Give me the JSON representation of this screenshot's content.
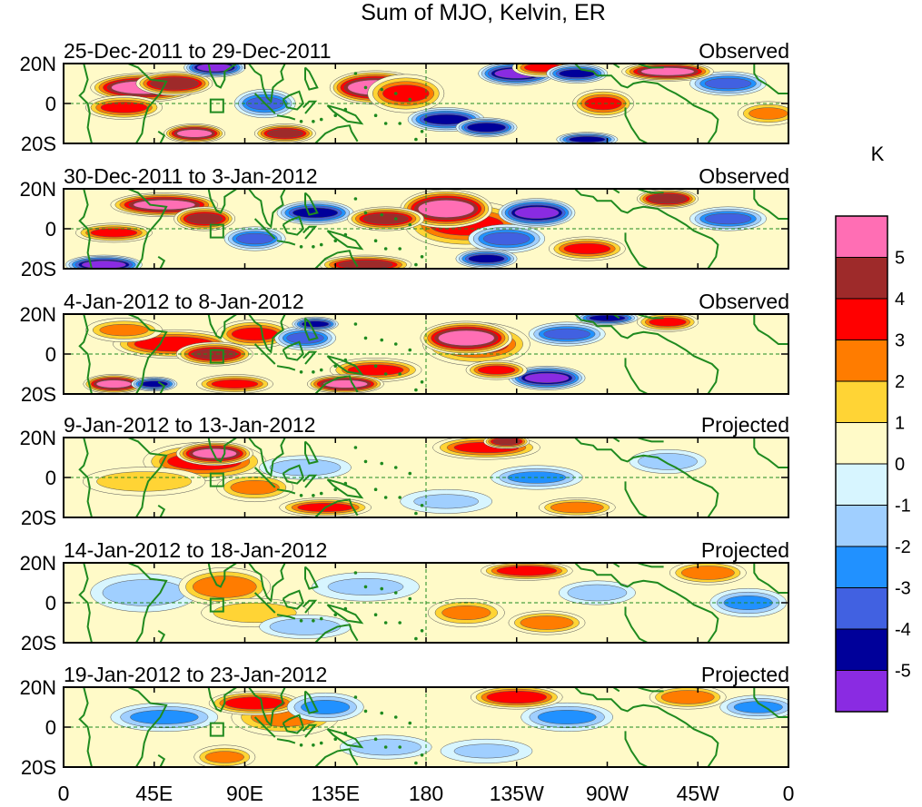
{
  "chart_data": {
    "type": "heatmap",
    "title": "Sum of MJO, Kelvin, ER",
    "units_label": "K",
    "x_ticks": [
      "0",
      "45E",
      "90E",
      "135E",
      "180",
      "135W",
      "90W",
      "45W",
      "0"
    ],
    "y_ticks": [
      "20N",
      "0",
      "20S"
    ],
    "legend": {
      "labels": [
        "5",
        "4",
        "3",
        "2",
        "1",
        "0",
        "-1",
        "-2",
        "-3",
        "-4",
        "-5"
      ],
      "colors": [
        "#ff6eb4",
        "#9e2a2a",
        "#ff0000",
        "#ff7c00",
        "#ffd435",
        "#fffac8",
        "#d7f5ff",
        "#a0cfff",
        "#2191ff",
        "#4161e1",
        "#00009a",
        "#8a2be2"
      ]
    },
    "panels": [
      {
        "date_range": "25-Dec-2011 to 29-Dec-2011",
        "status": "Observed",
        "anomalies": [
          {
            "lon": 40,
            "lat": 8,
            "value": 5.5,
            "rx": 14,
            "ry": 6
          },
          {
            "lon": 55,
            "lat": 10,
            "value": 4.5,
            "rx": 10,
            "ry": 5
          },
          {
            "lon": 30,
            "lat": -2,
            "value": 3,
            "rx": 10,
            "ry": 5
          },
          {
            "lon": 75,
            "lat": 18,
            "value": -5,
            "rx": 8,
            "ry": 4
          },
          {
            "lon": 65,
            "lat": -15,
            "value": 5,
            "rx": 8,
            "ry": 4
          },
          {
            "lon": 100,
            "lat": 0,
            "value": -3,
            "rx": 8,
            "ry": 6
          },
          {
            "lon": 110,
            "lat": -15,
            "value": 4,
            "rx": 8,
            "ry": 4
          },
          {
            "lon": 155,
            "lat": 8,
            "value": 5.5,
            "rx": 12,
            "ry": 7
          },
          {
            "lon": 170,
            "lat": 5,
            "value": 3,
            "rx": 10,
            "ry": 8
          },
          {
            "lon": 190,
            "lat": -8,
            "value": -4,
            "rx": 10,
            "ry": 5
          },
          {
            "lon": 210,
            "lat": -12,
            "value": -4.5,
            "rx": 8,
            "ry": 4
          },
          {
            "lon": 225,
            "lat": 15,
            "value": -5,
            "rx": 10,
            "ry": 5
          },
          {
            "lon": 238,
            "lat": 18,
            "value": 3,
            "rx": 8,
            "ry": 4
          },
          {
            "lon": 255,
            "lat": 15,
            "value": -4,
            "rx": 8,
            "ry": 4
          },
          {
            "lon": 268,
            "lat": 0,
            "value": 3,
            "rx": 8,
            "ry": 6
          },
          {
            "lon": 300,
            "lat": 16,
            "value": 5,
            "rx": 12,
            "ry": 4
          },
          {
            "lon": 330,
            "lat": 10,
            "value": -3,
            "rx": 10,
            "ry": 5
          },
          {
            "lon": 350,
            "lat": -5,
            "value": 2,
            "rx": 8,
            "ry": 5
          },
          {
            "lon": 260,
            "lat": -18,
            "value": -4,
            "rx": 8,
            "ry": 3
          }
        ]
      },
      {
        "date_range": "30-Dec-2011 to 3-Jan-2012",
        "status": "Observed",
        "anomalies": [
          {
            "lon": 50,
            "lat": 12,
            "value": 5,
            "rx": 14,
            "ry": 5
          },
          {
            "lon": 70,
            "lat": 5,
            "value": 4,
            "rx": 8,
            "ry": 5
          },
          {
            "lon": 25,
            "lat": -2,
            "value": 3,
            "rx": 10,
            "ry": 4
          },
          {
            "lon": 20,
            "lat": -18,
            "value": -5,
            "rx": 10,
            "ry": 4
          },
          {
            "lon": 95,
            "lat": -5,
            "value": -3,
            "rx": 8,
            "ry": 5
          },
          {
            "lon": 125,
            "lat": 8,
            "value": -4,
            "rx": 10,
            "ry": 5
          },
          {
            "lon": 150,
            "lat": -18,
            "value": 4,
            "rx": 12,
            "ry": 4
          },
          {
            "lon": 160,
            "lat": 5,
            "value": 4,
            "rx": 10,
            "ry": 5
          },
          {
            "lon": 190,
            "lat": 10,
            "value": 5.5,
            "rx": 12,
            "ry": 8
          },
          {
            "lon": 200,
            "lat": 2,
            "value": 3,
            "rx": 16,
            "ry": 10
          },
          {
            "lon": 220,
            "lat": -5,
            "value": -3,
            "rx": 10,
            "ry": 6
          },
          {
            "lon": 235,
            "lat": 8,
            "value": -5,
            "rx": 10,
            "ry": 6
          },
          {
            "lon": 210,
            "lat": -15,
            "value": -4,
            "rx": 8,
            "ry": 4
          },
          {
            "lon": 260,
            "lat": -10,
            "value": 3,
            "rx": 10,
            "ry": 5
          },
          {
            "lon": 300,
            "lat": 15,
            "value": 4.5,
            "rx": 8,
            "ry": 4
          },
          {
            "lon": 330,
            "lat": 5,
            "value": -3,
            "rx": 10,
            "ry": 5
          }
        ]
      },
      {
        "date_range": "4-Jan-2012 to 8-Jan-2012",
        "status": "Observed",
        "anomalies": [
          {
            "lon": 55,
            "lat": 5,
            "value": 3.5,
            "rx": 16,
            "ry": 6
          },
          {
            "lon": 75,
            "lat": 0,
            "value": 4,
            "rx": 10,
            "ry": 5
          },
          {
            "lon": 95,
            "lat": 10,
            "value": 3,
            "rx": 10,
            "ry": 6
          },
          {
            "lon": 30,
            "lat": 12,
            "value": 2,
            "rx": 10,
            "ry": 5
          },
          {
            "lon": 25,
            "lat": -15,
            "value": 5,
            "rx": 8,
            "ry": 4
          },
          {
            "lon": 45,
            "lat": -15,
            "value": -4,
            "rx": 6,
            "ry": 3
          },
          {
            "lon": 85,
            "lat": -15,
            "value": 3,
            "rx": 10,
            "ry": 4
          },
          {
            "lon": 120,
            "lat": 8,
            "value": -3,
            "rx": 8,
            "ry": 5
          },
          {
            "lon": 125,
            "lat": 15,
            "value": -4,
            "rx": 6,
            "ry": 3
          },
          {
            "lon": 140,
            "lat": -15,
            "value": 5,
            "rx": 10,
            "ry": 4
          },
          {
            "lon": 155,
            "lat": -8,
            "value": 3,
            "rx": 12,
            "ry": 5
          },
          {
            "lon": 200,
            "lat": 8,
            "value": 5.5,
            "rx": 12,
            "ry": 7
          },
          {
            "lon": 205,
            "lat": 5,
            "value": 3,
            "rx": 14,
            "ry": 9
          },
          {
            "lon": 215,
            "lat": -8,
            "value": 3,
            "rx": 8,
            "ry": 4
          },
          {
            "lon": 240,
            "lat": -12,
            "value": -5,
            "rx": 10,
            "ry": 5
          },
          {
            "lon": 250,
            "lat": 10,
            "value": -3,
            "rx": 10,
            "ry": 5
          },
          {
            "lon": 300,
            "lat": 16,
            "value": 3,
            "rx": 8,
            "ry": 4
          },
          {
            "lon": 270,
            "lat": 18,
            "value": -4,
            "rx": 8,
            "ry": 3
          }
        ]
      },
      {
        "date_range": "9-Jan-2012 to 13-Jan-2012",
        "status": "Projected",
        "anomalies": [
          {
            "lon": 75,
            "lat": 12,
            "value": 5,
            "rx": 10,
            "ry": 5
          },
          {
            "lon": 70,
            "lat": 8,
            "value": 3,
            "rx": 16,
            "ry": 8
          },
          {
            "lon": 40,
            "lat": -2,
            "value": 1.5,
            "rx": 16,
            "ry": 6
          },
          {
            "lon": 95,
            "lat": -5,
            "value": 2,
            "rx": 10,
            "ry": 6
          },
          {
            "lon": 130,
            "lat": -15,
            "value": 3,
            "rx": 12,
            "ry": 4
          },
          {
            "lon": 120,
            "lat": 5,
            "value": -1.5,
            "rx": 12,
            "ry": 5
          },
          {
            "lon": 210,
            "lat": 15,
            "value": 3,
            "rx": 14,
            "ry": 5
          },
          {
            "lon": 220,
            "lat": 18,
            "value": 4,
            "rx": 6,
            "ry": 3
          },
          {
            "lon": 235,
            "lat": 0,
            "value": -2,
            "rx": 12,
            "ry": 5
          },
          {
            "lon": 255,
            "lat": -15,
            "value": 2.5,
            "rx": 10,
            "ry": 4
          },
          {
            "lon": 300,
            "lat": 8,
            "value": -1.5,
            "rx": 10,
            "ry": 5
          },
          {
            "lon": 190,
            "lat": -12,
            "value": -1,
            "rx": 12,
            "ry": 5
          }
        ]
      },
      {
        "date_range": "14-Jan-2012 to 18-Jan-2012",
        "status": "Projected",
        "anomalies": [
          {
            "lon": 80,
            "lat": 8,
            "value": 2.5,
            "rx": 12,
            "ry": 8
          },
          {
            "lon": 95,
            "lat": -5,
            "value": 1.5,
            "rx": 14,
            "ry": 6
          },
          {
            "lon": 40,
            "lat": 5,
            "value": -1.5,
            "rx": 14,
            "ry": 8
          },
          {
            "lon": 120,
            "lat": -12,
            "value": -1.5,
            "rx": 12,
            "ry": 5
          },
          {
            "lon": 150,
            "lat": 8,
            "value": -1,
            "rx": 14,
            "ry": 6
          },
          {
            "lon": 230,
            "lat": 16,
            "value": 3.5,
            "rx": 12,
            "ry": 4
          },
          {
            "lon": 200,
            "lat": -5,
            "value": 2,
            "rx": 10,
            "ry": 6
          },
          {
            "lon": 240,
            "lat": -10,
            "value": 2.5,
            "rx": 10,
            "ry": 5
          },
          {
            "lon": 265,
            "lat": 5,
            "value": -1.5,
            "rx": 10,
            "ry": 5
          },
          {
            "lon": 320,
            "lat": 15,
            "value": 2.5,
            "rx": 10,
            "ry": 5
          },
          {
            "lon": 340,
            "lat": 0,
            "value": -2,
            "rx": 10,
            "ry": 6
          }
        ]
      },
      {
        "date_range": "19-Jan-2012 to 23-Jan-2012",
        "status": "Projected",
        "anomalies": [
          {
            "lon": 95,
            "lat": 12,
            "value": 3.5,
            "rx": 12,
            "ry": 5
          },
          {
            "lon": 110,
            "lat": 5,
            "value": 2,
            "rx": 14,
            "ry": 8
          },
          {
            "lon": 50,
            "lat": 5,
            "value": -2,
            "rx": 14,
            "ry": 6
          },
          {
            "lon": 130,
            "lat": 10,
            "value": -2,
            "rx": 10,
            "ry": 6
          },
          {
            "lon": 80,
            "lat": -15,
            "value": 2,
            "rx": 8,
            "ry": 5
          },
          {
            "lon": 160,
            "lat": -10,
            "value": -1.5,
            "rx": 12,
            "ry": 5
          },
          {
            "lon": 225,
            "lat": 15,
            "value": 3.5,
            "rx": 12,
            "ry": 5
          },
          {
            "lon": 250,
            "lat": 5,
            "value": -2,
            "rx": 12,
            "ry": 6
          },
          {
            "lon": 210,
            "lat": -12,
            "value": -1,
            "rx": 12,
            "ry": 5
          },
          {
            "lon": 310,
            "lat": 15,
            "value": 2.5,
            "rx": 10,
            "ry": 5
          },
          {
            "lon": 345,
            "lat": 10,
            "value": -2,
            "rx": 10,
            "ry": 5
          }
        ]
      }
    ]
  }
}
